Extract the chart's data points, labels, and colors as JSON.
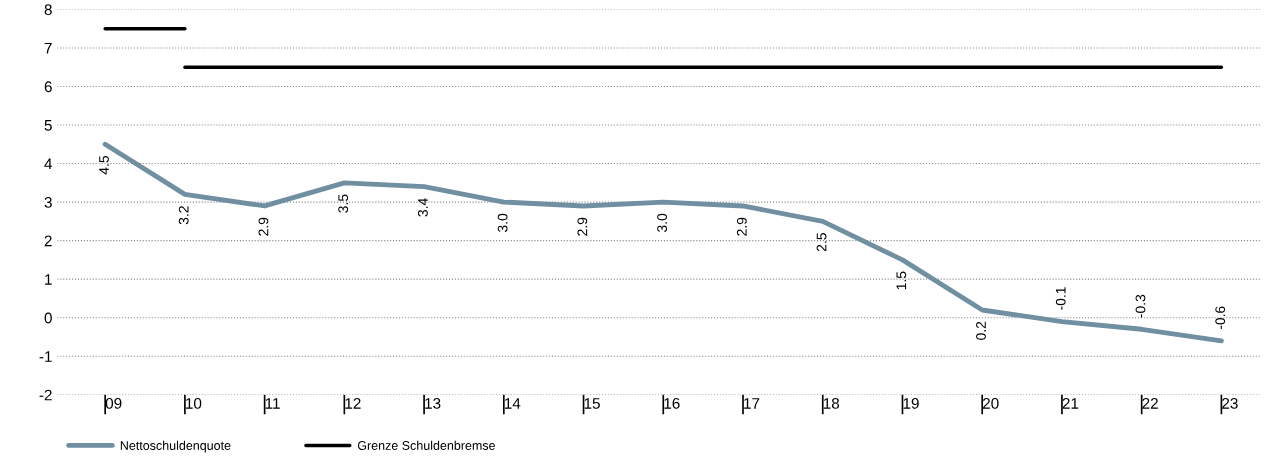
{
  "chart_data": {
    "type": "line",
    "categories": [
      "09",
      "10",
      "11",
      "12",
      "13",
      "14",
      "15",
      "16",
      "17",
      "18",
      "19",
      "20",
      "21",
      "22",
      "23"
    ],
    "series": [
      {
        "name": "Nettoschuldenquote",
        "color": "#7090a2",
        "values": [
          4.5,
          3.2,
          2.9,
          3.5,
          3.4,
          3.0,
          2.9,
          3.0,
          2.9,
          2.5,
          1.5,
          0.2,
          -0.1,
          -0.3,
          -0.6
        ],
        "value_labels": [
          "4.5",
          "3.2",
          "2.9",
          "3.5",
          "3.4",
          "3.0",
          "2.9",
          "3.0",
          "2.9",
          "2.5",
          "1.5",
          "0.2",
          "-0.1",
          "-0.3",
          "-0.6"
        ]
      },
      {
        "name": "Grenze Schuldenbremse",
        "color": "#000000",
        "type": "step",
        "values": [
          7.5,
          6.5,
          6.5,
          6.5,
          6.5,
          6.5,
          6.5,
          6.5,
          6.5,
          6.5,
          6.5,
          6.5,
          6.5,
          6.5,
          6.5
        ]
      }
    ],
    "ylim": [
      -2,
      8
    ],
    "yticks": [
      -2,
      -1,
      0,
      1,
      2,
      3,
      4,
      5,
      6,
      7,
      8
    ],
    "grid": "y",
    "legend": "bottom left",
    "marker": "none",
    "line_style": "solid"
  }
}
